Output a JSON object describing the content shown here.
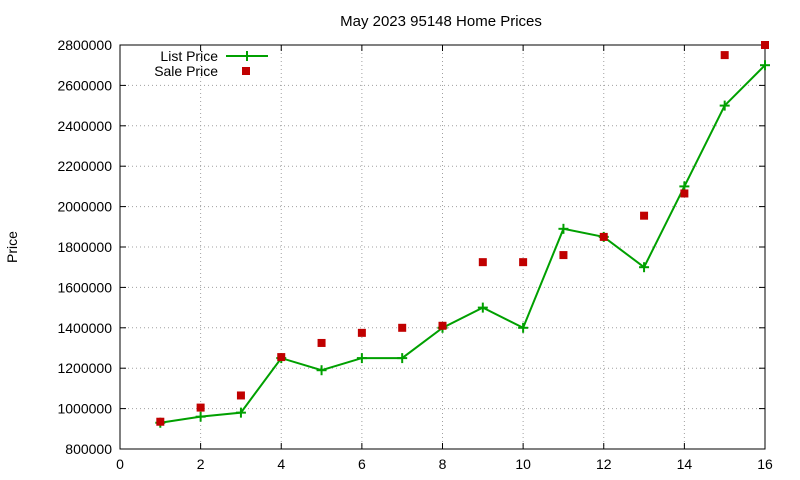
{
  "chart_data": {
    "type": "line",
    "title": "May 2023 95148 Home Prices",
    "xlabel": "",
    "ylabel": "Price",
    "xlim": [
      0,
      16
    ],
    "ylim": [
      800000,
      2800000
    ],
    "xticks": [
      0,
      2,
      4,
      6,
      8,
      10,
      12,
      14,
      16
    ],
    "yticks": [
      800000,
      1000000,
      1200000,
      1400000,
      1600000,
      1800000,
      2000000,
      2200000,
      2400000,
      2600000,
      2800000
    ],
    "grid": true,
    "legend_position": "top-left",
    "series": [
      {
        "name": "List Price",
        "style": "line+cross",
        "color": "#00a000",
        "x": [
          1,
          2,
          3,
          4,
          5,
          6,
          7,
          8,
          9,
          10,
          11,
          12,
          13,
          14,
          15,
          16
        ],
        "y": [
          930000,
          960000,
          980000,
          1250000,
          1190000,
          1250000,
          1250000,
          1400000,
          1500000,
          1400000,
          1890000,
          1850000,
          1700000,
          2100000,
          2500000,
          2700000
        ]
      },
      {
        "name": "Sale Price",
        "style": "square",
        "color": "#c00000",
        "x": [
          1,
          2,
          3,
          4,
          5,
          6,
          7,
          8,
          9,
          10,
          11,
          12,
          13,
          14,
          15,
          16
        ],
        "y": [
          935000,
          1005000,
          1065000,
          1255000,
          1325000,
          1375000,
          1400000,
          1410000,
          1725000,
          1725000,
          1760000,
          1850000,
          1955000,
          2065000,
          2750000,
          2800000
        ]
      }
    ]
  }
}
